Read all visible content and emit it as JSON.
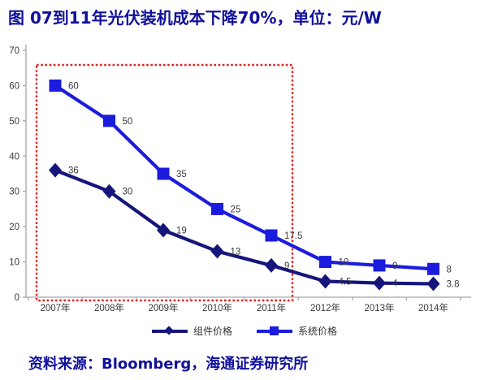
{
  "title": "图 07到11年光伏装机成本下降70%，单位：元/W",
  "source": "资料来源：Bloomberg，海通证券研究所",
  "colors": {
    "title_text": "#10109C",
    "axis": "#A6A6A6",
    "tick_label": "#3A3A3A",
    "data_label": "#3A3A3A",
    "highlight_box": "#E02222",
    "component_price": "#15157B",
    "system_price": "#1C1CDE"
  },
  "chart_data": {
    "type": "line",
    "title": "图 07到11年光伏装机成本下降70%，单位：元/W",
    "xlabel": "",
    "ylabel": "",
    "categories": [
      "2007年",
      "2008年",
      "2009年",
      "2010年",
      "2011年",
      "2012年",
      "2013年",
      "2014年"
    ],
    "series": [
      {
        "name": "组件价格",
        "marker": "diamond",
        "color": "#15157B",
        "values": [
          36,
          30,
          19,
          13,
          9,
          4.5,
          4,
          3.8
        ],
        "labels": [
          "36",
          "30",
          "19",
          "13",
          "9",
          "4.5",
          "4",
          "3.8"
        ]
      },
      {
        "name": "系统价格",
        "marker": "square",
        "color": "#1C1CDE",
        "values": [
          60,
          50,
          35,
          25,
          17.5,
          10,
          9,
          8
        ],
        "labels": [
          "60",
          "50",
          "35",
          "25",
          "17.5",
          "10",
          "9",
          "8"
        ]
      }
    ],
    "ylim": [
      0,
      70
    ],
    "yticks": [
      0,
      10,
      20,
      30,
      40,
      50,
      60,
      70
    ],
    "grid": false,
    "legend_position": "bottom",
    "annotations": {
      "highlight_box": {
        "from_category": "2007年",
        "to_category": "2011年",
        "style": "red-dotted",
        "color": "#E02222"
      }
    }
  }
}
